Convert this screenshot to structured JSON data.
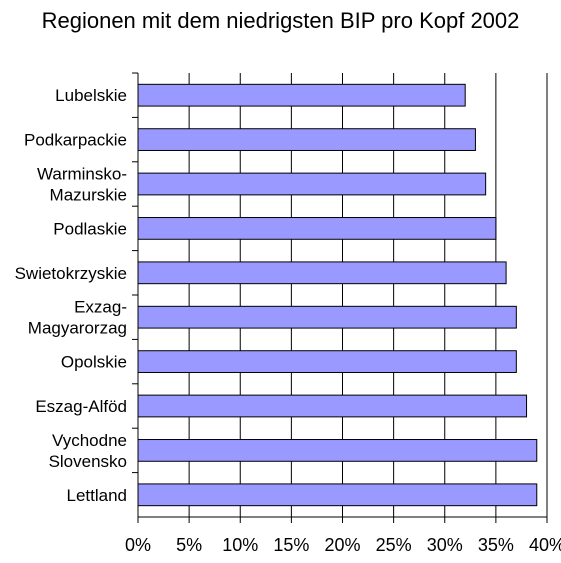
{
  "chart_data": {
    "type": "bar",
    "orientation": "horizontal",
    "title": "Regionen mit dem niedrigsten BIP pro Kopf 2002",
    "categories": [
      [
        "Lubelskie"
      ],
      [
        "Podkarpackie"
      ],
      [
        "Warminsko-",
        "Mazurskie"
      ],
      [
        "Podlaskie"
      ],
      [
        "Swietokrzyskie"
      ],
      [
        "Exzag-",
        "Magyarorzag"
      ],
      [
        "Opolskie"
      ],
      [
        "Eszag-Alföd"
      ],
      [
        "Vychodne",
        "Slovensko"
      ],
      [
        "Lettland"
      ]
    ],
    "values": [
      32,
      33,
      34,
      35,
      36,
      37,
      37,
      38,
      39,
      39
    ],
    "xlim": [
      0,
      40
    ],
    "x_ticks": [
      0,
      5,
      10,
      15,
      20,
      25,
      30,
      35,
      40
    ],
    "x_tick_labels": [
      "0%",
      "5%",
      "10%",
      "15%",
      "20%",
      "25%",
      "30%",
      "35%",
      "40%"
    ],
    "grid": "vertical",
    "legend": "none",
    "colors": {
      "bar_fill": "#9999ff",
      "bar_stroke": "#000000",
      "grid": "#000000"
    }
  }
}
